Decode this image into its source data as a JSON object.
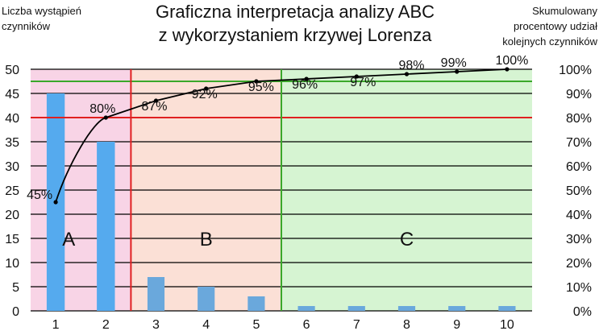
{
  "chart_data": {
    "type": "bar",
    "title_lines": [
      "Graficzna interpretacja analizy ABC",
      "z wykorzystaniem krzywej Lorenza"
    ],
    "ylabel_left_lines": [
      "Liczba wystąpień",
      "czynników"
    ],
    "ylabel_right_lines": [
      "Skumulowany",
      "procentowy udział",
      "kolejnych czynników"
    ],
    "categories": [
      "1",
      "2",
      "3",
      "4",
      "5",
      "6",
      "7",
      "8",
      "9",
      "10"
    ],
    "series": [
      {
        "type": "bar",
        "values": [
          45,
          35,
          7,
          5,
          3,
          1,
          1,
          1,
          1,
          1
        ]
      },
      {
        "type": "line",
        "axis": "right",
        "values": [
          45,
          80,
          87,
          92,
          95,
          96,
          97,
          98,
          99,
          100
        ],
        "labels": [
          "45%",
          "80%",
          "87%",
          "92%",
          "95%",
          "96%",
          "97%",
          "98%",
          "99%",
          "100%"
        ]
      }
    ],
    "ylim_left": [
      0,
      50
    ],
    "yticks_left": [
      "0",
      "5",
      "10",
      "15",
      "20",
      "25",
      "30",
      "35",
      "40",
      "45",
      "50"
    ],
    "ylim_right": [
      0,
      100
    ],
    "yticks_right": [
      "0%",
      "10%",
      "20%",
      "30%",
      "40%",
      "50%",
      "60%",
      "70%",
      "80%",
      "90%",
      "100%"
    ],
    "grid": true,
    "zones": [
      {
        "label": "A",
        "from_category": 1,
        "to_category": 2,
        "color": "#f8d4e6"
      },
      {
        "label": "B",
        "from_category": 3,
        "to_category": 5,
        "color": "#fbe0d6"
      },
      {
        "label": "C",
        "from_category": 6,
        "to_category": 10,
        "color": "#d6f4d2"
      }
    ],
    "thresholds": [
      {
        "value_pct": 80,
        "color": "#e02020"
      },
      {
        "value_pct": 95,
        "color": "#3aa82a"
      }
    ],
    "colors": {
      "bar_a": "#55aaee",
      "bar_bc": "#6aa8dc",
      "line": "#000000"
    }
  }
}
